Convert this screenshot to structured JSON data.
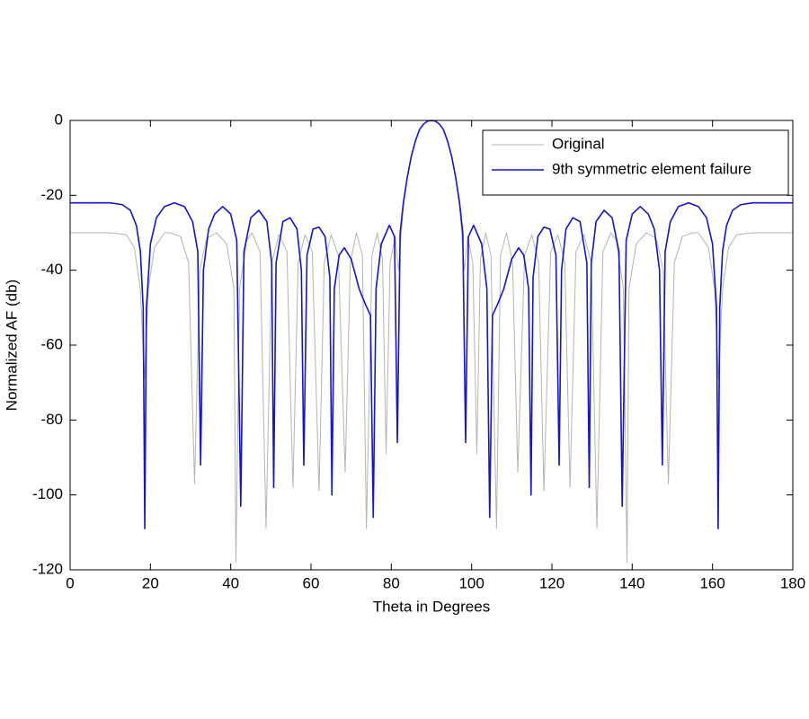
{
  "chart_data": {
    "type": "line",
    "xlabel": "Theta in Degrees",
    "ylabel": "Normalized AF (db)",
    "xlim": [
      0,
      180
    ],
    "ylim": [
      -120,
      0
    ],
    "xticks": [
      0,
      20,
      40,
      60,
      80,
      100,
      120,
      140,
      160,
      180
    ],
    "yticks": [
      -120,
      -100,
      -80,
      -60,
      -40,
      -20,
      0
    ],
    "grid": false,
    "legend": "upper right",
    "series": [
      {
        "name": "Original",
        "color": "#b4b4b4",
        "x": [
          0,
          10,
          14,
          16,
          17.5,
          18.5,
          19.5,
          21,
          23.5,
          25,
          27.5,
          29.5,
          31,
          32.3,
          34,
          36.5,
          39,
          40.8,
          41.3,
          42.2,
          44,
          45.3,
          47.3,
          48.8,
          50.2,
          52,
          54,
          55.5,
          56.8,
          58.5,
          60.3,
          62,
          63.3,
          65,
          66.8,
          68.5,
          69.8,
          71.3,
          72.8,
          73.8,
          75.2,
          76.5,
          77.8,
          78.7,
          79.7,
          81,
          81.8,
          82.5,
          83,
          84,
          85,
          86,
          87,
          88,
          89,
          90,
          91,
          92,
          93,
          94,
          95,
          96,
          97,
          97.5,
          98.2,
          99,
          100.3,
          101.3,
          102.2,
          103.5,
          104.8,
          106.2,
          107.2,
          108.7,
          110.2,
          111.5,
          113.2,
          115,
          116.7,
          118,
          119.7,
          121.5,
          123.2,
          124.5,
          126,
          128,
          129.8,
          131.2,
          132.7,
          134.7,
          136,
          137.8,
          138.7,
          139.2,
          141,
          143.5,
          146,
          147.7,
          149,
          150.5,
          152.5,
          155,
          156.5,
          159,
          160.5,
          161.5,
          162.5,
          164,
          166,
          170,
          180
        ],
        "values": [
          -30,
          -30,
          -30.5,
          -34,
          -45,
          -69,
          -45,
          -34,
          -30,
          -30,
          -31,
          -38,
          -97,
          -40,
          -31.5,
          -30,
          -33,
          -45,
          -118,
          -45,
          -32,
          -30,
          -35,
          -109,
          -38,
          -30.5,
          -35,
          -98,
          -38,
          -30.5,
          -35,
          -99,
          -38,
          -30.5,
          -36,
          -94,
          -38,
          -30,
          -36,
          -109,
          -36,
          -30,
          -37,
          -89,
          -38,
          -31,
          -40,
          -30,
          -23,
          -15,
          -9.5,
          -5.5,
          -2.5,
          -1,
          -0.2,
          0,
          -0.2,
          -1,
          -2.5,
          -5.5,
          -9.5,
          -15,
          -23,
          -30,
          -40,
          -31,
          -38,
          -89,
          -37,
          -30,
          -36,
          -109,
          -36,
          -30,
          -38,
          -94,
          -36,
          -30.5,
          -38,
          -99,
          -35,
          -30.5,
          -38,
          -98,
          -35,
          -30.5,
          -38,
          -109,
          -35,
          -30,
          -32,
          -45,
          -118,
          -45,
          -33,
          -30,
          -31.5,
          -40,
          -97,
          -38,
          -31,
          -30,
          -30,
          -34,
          -45,
          -69,
          -45,
          -34,
          -30.5,
          -30,
          -30
        ]
      },
      {
        "name": "9th symmetric element failure",
        "color": "#1414d2",
        "x": [
          0,
          5,
          10,
          13,
          15,
          16.5,
          17.5,
          18.2,
          18.6,
          19,
          20,
          21.5,
          23.5,
          26,
          28.5,
          30.5,
          31.8,
          32.5,
          33.2,
          34.5,
          36,
          38,
          40,
          41.5,
          42.5,
          43.3,
          45,
          47,
          49,
          50.2,
          50.7,
          51.3,
          53,
          54.8,
          56.5,
          57.6,
          58.2,
          59,
          60.5,
          62,
          63.5,
          64.7,
          65.2,
          65.8,
          67,
          68.3,
          70,
          72,
          73.5,
          74.8,
          75.5,
          76.2,
          77.5,
          79.5,
          80.8,
          81.5,
          82.2,
          83,
          84,
          85,
          86,
          87,
          88,
          89,
          90,
          91,
          92,
          93,
          94,
          95,
          96,
          97,
          97.8,
          98.5,
          99.2,
          100.5,
          102.5,
          103.8,
          104.5,
          105.2,
          106.5,
          108,
          110,
          111.7,
          113,
          114.2,
          114.8,
          115.3,
          116.5,
          118,
          119.5,
          121,
          121.8,
          122.4,
          123.5,
          125.2,
          127,
          128.7,
          129.3,
          129.8,
          131,
          133,
          135,
          136.7,
          137.5,
          138.5,
          140,
          142,
          144,
          145.5,
          146.8,
          147.5,
          148.2,
          149.5,
          151.5,
          154,
          156.5,
          158.5,
          160,
          161,
          161.4,
          161.8,
          162.5,
          163.5,
          165,
          167,
          170,
          175,
          180
        ],
        "values": [
          -22,
          -22,
          -22,
          -22.5,
          -24,
          -28,
          -35,
          -50,
          -109,
          -50,
          -33,
          -26,
          -23,
          -22,
          -23,
          -27,
          -35,
          -92,
          -40,
          -29,
          -25,
          -23,
          -25,
          -32,
          -103,
          -35,
          -26,
          -24,
          -27,
          -38,
          -98,
          -38,
          -27,
          -26,
          -29,
          -40,
          -92,
          -36,
          -29,
          -28.5,
          -31,
          -42,
          -100,
          -45,
          -36,
          -34,
          -37,
          -45,
          -49,
          -52,
          -106,
          -45,
          -33,
          -28,
          -31,
          -86,
          -30,
          -22,
          -15,
          -9.5,
          -5.5,
          -2.5,
          -1,
          -0.2,
          0,
          -0.2,
          -1,
          -2.5,
          -5.5,
          -9.5,
          -15,
          -22,
          -30,
          -86,
          -31,
          -28,
          -33,
          -45,
          -106,
          -52,
          -49,
          -45,
          -37,
          -34,
          -36,
          -45,
          -100,
          -42,
          -31,
          -28.5,
          -29,
          -36,
          -92,
          -40,
          -29,
          -26,
          -27,
          -38,
          -98,
          -38,
          -27,
          -24,
          -26,
          -35,
          -103,
          -32,
          -25,
          -23,
          -25,
          -29,
          -40,
          -92,
          -35,
          -27,
          -23,
          -22,
          -23,
          -26,
          -33,
          -50,
          -109,
          -50,
          -35,
          -28,
          -24,
          -22.5,
          -22,
          -22,
          -22
        ]
      }
    ]
  }
}
